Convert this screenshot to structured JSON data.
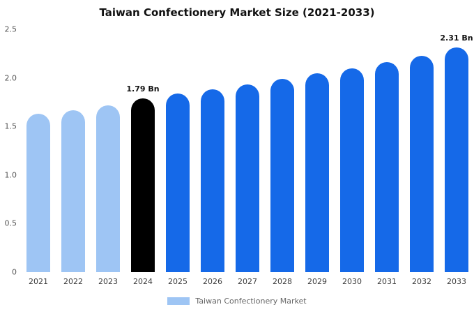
{
  "chart_data": {
    "type": "bar",
    "title": "Taiwan Confectionery Market Size (2021-2033)",
    "categories": [
      "2021",
      "2022",
      "2023",
      "2024",
      "2025",
      "2026",
      "2027",
      "2028",
      "2029",
      "2030",
      "2031",
      "2032",
      "2033"
    ],
    "values": [
      1.63,
      1.67,
      1.72,
      1.79,
      1.84,
      1.88,
      1.93,
      1.99,
      2.05,
      2.1,
      2.16,
      2.23,
      2.31
    ],
    "bar_colors": [
      "#9EC5F4",
      "#9EC5F4",
      "#9EC5F4",
      "#000000",
      "#1569E8",
      "#1569E8",
      "#1569E8",
      "#1569E8",
      "#1569E8",
      "#1569E8",
      "#1569E8",
      "#1569E8",
      "#1569E8"
    ],
    "xlabel": "",
    "ylabel": "",
    "ylim": [
      0,
      2.5
    ],
    "yticks": [
      0,
      0.5,
      1.0,
      1.5,
      2.0,
      2.5
    ],
    "ytick_labels": [
      "0",
      "0.5",
      "1.0",
      "1.5",
      "2.0",
      "2.5"
    ],
    "grid": false,
    "legend_position": "bottom",
    "annotations": [
      {
        "category": "2024",
        "text": "1.79 Bn"
      },
      {
        "category": "2033",
        "text": "2.31 Bn"
      }
    ],
    "legend": [
      {
        "label": "Taiwan Confectionery Market",
        "color": "#9EC5F4"
      }
    ]
  }
}
